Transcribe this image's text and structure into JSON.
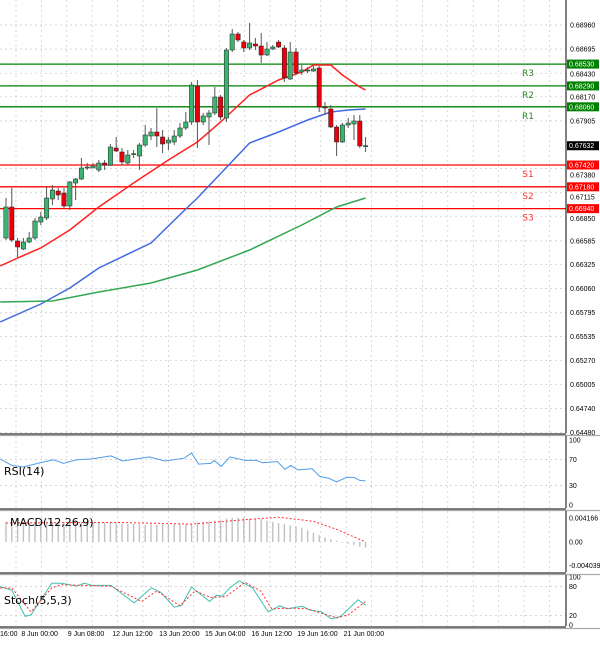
{
  "chart_data": {
    "type": "candlestick",
    "symbol_panel": "main",
    "price_axis": {
      "ticks": [
        0.6896,
        0.68695,
        0.6843,
        0.6817,
        0.67905,
        0.6738,
        0.67115,
        0.6685,
        0.66585,
        0.66325,
        0.6606,
        0.65795,
        0.65535,
        0.6527,
        0.65005,
        0.6474,
        0.6448
      ],
      "range": [
        0.6448,
        0.6918
      ]
    },
    "time_axis": {
      "labels": [
        "16:00",
        "8 Jun 00:00",
        "9 Jun 08:00",
        "12 Jun 12:00",
        "13 Jun 20:00",
        "15 Jun 04:00",
        "16 Jun 12:00",
        "19 Jun 16:00",
        "21 Jun 00:00"
      ],
      "label_candle_index": [
        1,
        6.8,
        14.8,
        22.8,
        30.9,
        38.8,
        46.8,
        54.7,
        62.7
      ]
    },
    "current_price": "0.67632",
    "colors": {
      "bull": "#3cb371",
      "bear": "#e8000b",
      "resistance": "#008000",
      "support": "#ff0000",
      "ma_fast": "#ff2020",
      "ma_mid": "#4169e1",
      "ma_slow": "#32a852",
      "rsi": "#4f9fe8",
      "stoch_main": "#40c0b0",
      "stoch_signal": "#ff3030",
      "macd_hist": "#c0c0c0",
      "macd_signal": "#ff3030"
    },
    "levels": [
      {
        "name": "R3",
        "value": "0.68530",
        "type": "resistance"
      },
      {
        "name": "R2",
        "value": "0.68290",
        "type": "resistance"
      },
      {
        "name": "R1",
        "value": "0.68060",
        "type": "resistance"
      },
      {
        "name": "S1",
        "value": "0.67420",
        "type": "support"
      },
      {
        "name": "S2",
        "value": "0.67180",
        "type": "support"
      },
      {
        "name": "S3",
        "value": "0.66940",
        "type": "support"
      }
    ],
    "candles_ohlc": [
      [
        0.66617,
        0.67057,
        0.66595,
        0.66958
      ],
      [
        0.66958,
        0.67167,
        0.66573,
        0.66595
      ],
      [
        0.66584,
        0.66617,
        0.66408,
        0.66518
      ],
      [
        0.66496,
        0.66617,
        0.66485,
        0.66573
      ],
      [
        0.66573,
        0.66683,
        0.66562,
        0.66617
      ],
      [
        0.66617,
        0.66837,
        0.66595,
        0.66804
      ],
      [
        0.66793,
        0.66903,
        0.6676,
        0.66848
      ],
      [
        0.66837,
        0.67178,
        0.66815,
        0.67057
      ],
      [
        0.67046,
        0.672,
        0.6698,
        0.67145
      ],
      [
        0.67134,
        0.67167,
        0.67035,
        0.6709
      ],
      [
        0.67112,
        0.67167,
        0.66947,
        0.66969
      ],
      [
        0.66969,
        0.67244,
        0.66925,
        0.67233
      ],
      [
        0.67222,
        0.67277,
        0.67035,
        0.67266
      ],
      [
        0.67266,
        0.67497,
        0.67255,
        0.67387
      ],
      [
        0.67387,
        0.67442,
        0.67365,
        0.67398
      ],
      [
        0.67387,
        0.67442,
        0.67387,
        0.67409
      ],
      [
        0.67365,
        0.67475,
        0.67343,
        0.67442
      ],
      [
        0.67442,
        0.67475,
        0.67365,
        0.6742
      ],
      [
        0.6742,
        0.67651,
        0.67409,
        0.67618
      ],
      [
        0.67607,
        0.67728,
        0.67563,
        0.67574
      ],
      [
        0.67563,
        0.67607,
        0.6742,
        0.67453
      ],
      [
        0.67442,
        0.67585,
        0.6742,
        0.6753
      ],
      [
        0.67541,
        0.67585,
        0.67497,
        0.67545
      ],
      [
        0.67519,
        0.67662,
        0.67365,
        0.6764
      ],
      [
        0.6764,
        0.6786,
        0.67618,
        0.6775
      ],
      [
        0.67739,
        0.67827,
        0.67695,
        0.67783
      ],
      [
        0.67783,
        0.68047,
        0.67618,
        0.67739
      ],
      [
        0.67728,
        0.67805,
        0.67552,
        0.67651
      ],
      [
        0.67662,
        0.67728,
        0.67585,
        0.67695
      ],
      [
        0.67673,
        0.67805,
        0.6764,
        0.67739
      ],
      [
        0.67739,
        0.67882,
        0.67717,
        0.67827
      ],
      [
        0.67827,
        0.68003,
        0.67805,
        0.67893
      ],
      [
        0.67893,
        0.68333,
        0.6786,
        0.683
      ],
      [
        0.68289,
        0.68355,
        0.67607,
        0.67893
      ],
      [
        0.67893,
        0.67992,
        0.6786,
        0.67959
      ],
      [
        0.67948,
        0.68025,
        0.6764,
        0.67992
      ],
      [
        0.67992,
        0.68278,
        0.6797,
        0.68168
      ],
      [
        0.68168,
        0.6819,
        0.67915,
        0.67948
      ],
      [
        0.67937,
        0.68707,
        0.67893,
        0.68685
      ],
      [
        0.68685,
        0.68916,
        0.68663,
        0.68861
      ],
      [
        0.68861,
        0.68883,
        0.68773,
        0.68795
      ],
      [
        0.68773,
        0.68795,
        0.68663,
        0.68707
      ],
      [
        0.68707,
        0.68982,
        0.68685,
        0.68762
      ],
      [
        0.68751,
        0.68817,
        0.68685,
        0.68729
      ],
      [
        0.68729,
        0.68872,
        0.68542,
        0.6863
      ],
      [
        0.6863,
        0.68773,
        0.68619,
        0.68696
      ],
      [
        0.68696,
        0.6874,
        0.68685,
        0.68718
      ],
      [
        0.68773,
        0.68795,
        0.68707,
        0.68718
      ],
      [
        0.68707,
        0.6874,
        0.68333,
        0.68377
      ],
      [
        0.68366,
        0.68773,
        0.68355,
        0.68663
      ],
      [
        0.68663,
        0.68707,
        0.6841,
        0.68432
      ],
      [
        0.68443,
        0.6852,
        0.6841,
        0.68465
      ],
      [
        0.68454,
        0.68498,
        0.68432,
        0.68465
      ],
      [
        0.68454,
        0.68509,
        0.68443,
        0.68476
      ],
      [
        0.68487,
        0.68509,
        0.68003,
        0.68058
      ],
      [
        0.68058,
        0.68113,
        0.6797,
        0.68047
      ],
      [
        0.68036,
        0.6808,
        0.67827,
        0.67838
      ],
      [
        0.67838,
        0.6786,
        0.67519,
        0.67673
      ],
      [
        0.67673,
        0.67882,
        0.67662,
        0.6786
      ],
      [
        0.6786,
        0.67937,
        0.67827,
        0.67882
      ],
      [
        0.67871,
        0.6797,
        0.67695,
        0.67904
      ],
      [
        0.67904,
        0.6797,
        0.67607,
        0.67629
      ],
      [
        0.67629,
        0.67728,
        0.67563,
        0.67632
      ]
    ],
    "moving_averages": [
      {
        "color_key": "ma_fast",
        "points": [
          [
            0,
            0.66309
          ],
          [
            3,
            0.66397
          ],
          [
            7,
            0.66507
          ],
          [
            12,
            0.66705
          ],
          [
            17,
            0.66958
          ],
          [
            23,
            0.67222
          ],
          [
            29,
            0.67475
          ],
          [
            34,
            0.67673
          ],
          [
            38,
            0.67893
          ],
          [
            43,
            0.6819
          ],
          [
            48,
            0.68355
          ],
          [
            52,
            0.68443
          ],
          [
            54,
            0.6852
          ],
          [
            57,
            0.6852
          ],
          [
            59,
            0.6841
          ],
          [
            62,
            0.68278
          ],
          [
            63,
            0.68245
          ]
        ]
      },
      {
        "color_key": "ma_mid",
        "points": [
          [
            0,
            0.65693
          ],
          [
            7,
            0.65891
          ],
          [
            12,
            0.66067
          ],
          [
            17,
            0.66287
          ],
          [
            26,
            0.66562
          ],
          [
            32,
            0.66936
          ],
          [
            34,
            0.67057
          ],
          [
            43,
            0.67662
          ],
          [
            48,
            0.67783
          ],
          [
            53,
            0.67915
          ],
          [
            57,
            0.68003
          ],
          [
            60,
            0.68025
          ],
          [
            63,
            0.68036
          ]
        ]
      },
      {
        "color_key": "ma_slow",
        "points": [
          [
            0,
            0.65913
          ],
          [
            9,
            0.65924
          ],
          [
            17,
            0.66023
          ],
          [
            26,
            0.66122
          ],
          [
            34,
            0.66265
          ],
          [
            43,
            0.66485
          ],
          [
            52,
            0.6676
          ],
          [
            58,
            0.66958
          ],
          [
            63,
            0.67057
          ]
        ]
      }
    ],
    "rsi": {
      "label": "RSI(14)",
      "ticks": [
        100,
        70,
        30,
        0
      ],
      "points": [
        [
          0,
          71
        ],
        [
          2,
          61
        ],
        [
          4,
          58.5
        ],
        [
          6.6,
          64.5
        ],
        [
          9.2,
          69.5
        ],
        [
          10.9,
          64
        ],
        [
          13.2,
          69.5
        ],
        [
          15.8,
          71
        ],
        [
          19.1,
          75.5
        ],
        [
          21.1,
          67.7
        ],
        [
          25.7,
          74
        ],
        [
          28.4,
          67.7
        ],
        [
          31.7,
          72
        ],
        [
          33,
          80
        ],
        [
          34.2,
          63
        ],
        [
          36.3,
          64
        ],
        [
          36.9,
          68.6
        ],
        [
          38.1,
          59.4
        ],
        [
          39.6,
          74
        ],
        [
          42.2,
          68.6
        ],
        [
          44.2,
          68.6
        ],
        [
          45.2,
          65
        ],
        [
          47.8,
          66.8
        ],
        [
          49.1,
          55
        ],
        [
          50.1,
          61
        ],
        [
          51.3,
          54
        ],
        [
          53.8,
          55.7
        ],
        [
          55.1,
          44
        ],
        [
          56.7,
          41
        ],
        [
          58,
          35.5
        ],
        [
          59.7,
          42.4
        ],
        [
          61,
          42.4
        ],
        [
          62,
          37.8
        ],
        [
          63,
          37
        ]
      ]
    },
    "macd": {
      "label": "MACD(12,26,9)",
      "ticks": [
        "0.004166",
        "0.00",
        "-0.004039"
      ],
      "range": [
        -0.004039,
        0.004166
      ],
      "histogram": [
        0.0035,
        0.0036,
        0.0034,
        0.0035,
        0.0034,
        0.0035,
        0.0036,
        0.0035,
        0.0035,
        0.0034,
        0.0034,
        0.0035,
        0.0034,
        0.0035,
        0.0035,
        0.0034,
        0.0035,
        0.0034,
        0.0034,
        0.0033,
        0.0032,
        0.0031,
        0.0031,
        0.0031,
        0.003,
        0.0031,
        0.003,
        0.0031,
        0.0031,
        0.0031,
        0.0031,
        0.0031,
        0.0032,
        0.0034,
        0.0035,
        0.0036,
        0.0037,
        0.0039,
        0.0041,
        0.0042,
        0.0042,
        0.0042,
        0.0041,
        0.0041,
        0.004,
        0.0037,
        0.0035,
        0.0033,
        0.0031,
        0.0029,
        0.0027,
        0.0025,
        0.002,
        0.0016,
        0.0012,
        0.0008,
        0.0005,
        0.0002,
        -0.0001,
        -0.0003,
        -0.0005,
        -0.0008,
        -0.001
      ],
      "signal": [
        [
          1,
          0.0033
        ],
        [
          20,
          0.0034
        ],
        [
          33,
          0.0031
        ],
        [
          40,
          0.0037
        ],
        [
          48,
          0.0043
        ],
        [
          54,
          0.0036
        ],
        [
          58,
          0.0022
        ],
        [
          63,
          0.0
        ]
      ]
    },
    "stochastic": {
      "label": "Stoch(5,5,3)",
      "ticks": [
        100,
        80,
        20,
        0
      ],
      "main": [
        [
          0,
          80
        ],
        [
          2,
          72.5
        ],
        [
          4.3,
          18
        ],
        [
          5.3,
          21
        ],
        [
          8.9,
          87
        ],
        [
          10.6,
          87
        ],
        [
          13.2,
          81
        ],
        [
          14.5,
          87
        ],
        [
          15.8,
          82.5
        ],
        [
          19.1,
          82.5
        ],
        [
          23.1,
          46
        ],
        [
          26.1,
          77.5
        ],
        [
          27.7,
          68
        ],
        [
          30,
          37
        ],
        [
          31.3,
          41
        ],
        [
          33,
          79
        ],
        [
          36.1,
          49
        ],
        [
          37.3,
          62
        ],
        [
          38.3,
          60
        ],
        [
          39.6,
          77.5
        ],
        [
          41.2,
          92
        ],
        [
          43.5,
          77.5
        ],
        [
          46.2,
          27.5
        ],
        [
          48.2,
          40
        ],
        [
          49.5,
          34
        ],
        [
          52.1,
          39
        ],
        [
          53.4,
          31
        ],
        [
          55.4,
          27.5
        ],
        [
          57.1,
          13
        ],
        [
          58.7,
          18
        ],
        [
          61.7,
          52.5
        ],
        [
          63,
          41
        ]
      ],
      "signal": [
        [
          0,
          77
        ],
        [
          2,
          77
        ],
        [
          5.3,
          27.5
        ],
        [
          8.9,
          77.5
        ],
        [
          10.6,
          84
        ],
        [
          19.1,
          80.6
        ],
        [
          24.4,
          49
        ],
        [
          27,
          71
        ],
        [
          31,
          40
        ],
        [
          33.6,
          71
        ],
        [
          36.3,
          57.5
        ],
        [
          38.9,
          59
        ],
        [
          42.2,
          89
        ],
        [
          44.9,
          71
        ],
        [
          46.8,
          34
        ],
        [
          50.1,
          35
        ],
        [
          52.8,
          34
        ],
        [
          58,
          15
        ],
        [
          60,
          21
        ],
        [
          63,
          49
        ]
      ]
    }
  }
}
